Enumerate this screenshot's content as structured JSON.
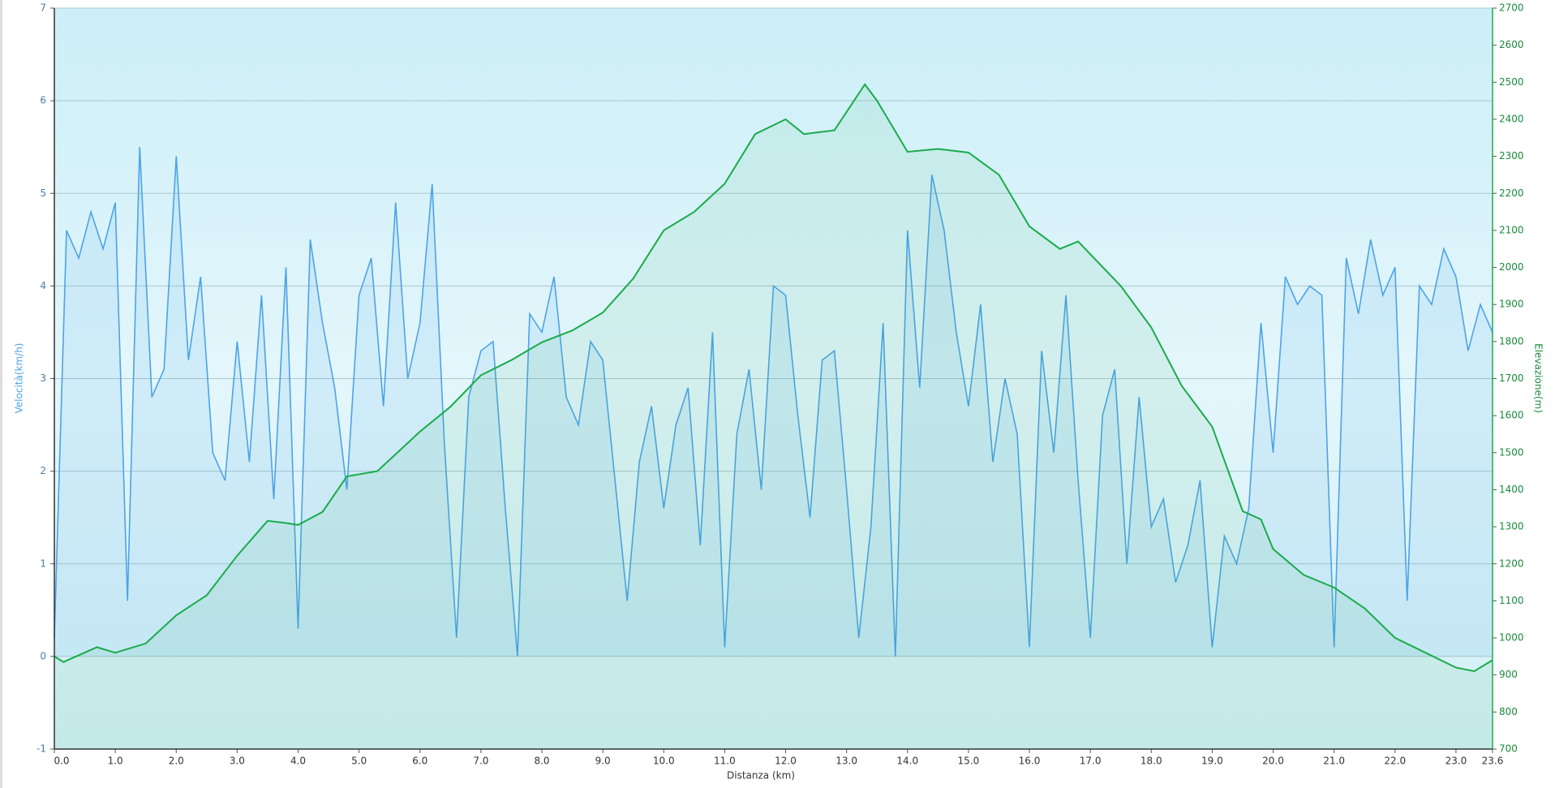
{
  "chart_data": {
    "type": "line",
    "x_label": "Distanza  (km)",
    "y_label": "Velocità(km/h)",
    "y2_label": "Elevazione(m)",
    "xlim": [
      0,
      23.6
    ],
    "xticks": [
      {
        "value": 0,
        "label": "0.0"
      },
      {
        "value": 1,
        "label": "1.0"
      },
      {
        "value": 2,
        "label": "2.0"
      },
      {
        "value": 3,
        "label": "3.0"
      },
      {
        "value": 4,
        "label": "4.0"
      },
      {
        "value": 5,
        "label": "5.0"
      },
      {
        "value": 6,
        "label": "6.0"
      },
      {
        "value": 7,
        "label": "7.0"
      },
      {
        "value": 8,
        "label": "8.0"
      },
      {
        "value": 9,
        "label": "9.0"
      },
      {
        "value": 10,
        "label": "10.0"
      },
      {
        "value": 11,
        "label": "11.0"
      },
      {
        "value": 12,
        "label": "12.0"
      },
      {
        "value": 13,
        "label": "13.0"
      },
      {
        "value": 14,
        "label": "14.0"
      },
      {
        "value": 15,
        "label": "15.0"
      },
      {
        "value": 16,
        "label": "16.0"
      },
      {
        "value": 17,
        "label": "17.0"
      },
      {
        "value": 18,
        "label": "18.0"
      },
      {
        "value": 19,
        "label": "19.0"
      },
      {
        "value": 20,
        "label": "20.0"
      },
      {
        "value": 21,
        "label": "21.0"
      },
      {
        "value": 22,
        "label": "22.0"
      },
      {
        "value": 23,
        "label": "23.0"
      },
      23.6
    ],
    "ylim": [
      -1,
      7
    ],
    "yticks": [
      -1,
      0,
      1,
      2,
      3,
      4,
      5,
      6,
      7
    ],
    "y2lim": [
      700,
      2700
    ],
    "y2ticks": [
      700,
      800,
      900,
      1000,
      1100,
      1200,
      1300,
      1400,
      1500,
      1600,
      1700,
      1800,
      1900,
      2000,
      2100,
      2200,
      2300,
      2400,
      2500,
      2600,
      2700
    ],
    "grid": true,
    "series": [
      {
        "name": "Velocità",
        "color": "#4da3e8",
        "x": [
          0,
          0.2,
          0.4,
          0.6,
          0.8,
          1,
          1.2,
          1.4,
          1.6,
          1.8,
          2,
          2.2,
          2.4,
          2.6,
          2.8,
          3,
          3.2,
          3.4,
          3.6,
          3.8,
          4,
          4.2,
          4.4,
          4.6,
          4.8,
          5,
          5.2,
          5.4,
          5.6,
          5.8,
          6,
          6.2,
          6.4,
          6.6,
          6.8,
          7,
          7.2,
          7.4,
          7.6,
          7.8,
          8,
          8.2,
          8.4,
          8.6,
          8.8,
          9,
          9.2,
          9.4,
          9.6,
          9.8,
          10,
          10.2,
          10.4,
          10.6,
          10.8,
          11,
          11.2,
          11.4,
          11.6,
          11.8,
          12,
          12.2,
          12.4,
          12.6,
          12.8,
          13,
          13.2,
          13.4,
          13.6,
          13.8,
          14,
          14.2,
          14.4,
          14.6,
          14.8,
          15,
          15.2,
          15.4,
          15.6,
          15.8,
          16,
          16.2,
          16.4,
          16.6,
          16.8,
          17,
          17.2,
          17.4,
          17.6,
          17.8,
          18,
          18.2,
          18.4,
          18.6,
          18.8,
          19,
          19.2,
          19.4,
          19.6,
          19.8,
          20,
          20.2,
          20.4,
          20.6,
          20.8,
          21,
          21.2,
          21.4,
          21.6,
          21.8,
          22,
          22.2,
          22.4,
          22.6,
          22.8,
          23,
          23.2,
          23.4,
          23.6
        ],
        "values": [
          0.2,
          4.6,
          4.3,
          4.8,
          4.4,
          4.9,
          0.6,
          5.5,
          2.8,
          3.1,
          5.4,
          3.2,
          4.1,
          2.2,
          1.9,
          3.4,
          2.1,
          3.9,
          1.7,
          4.2,
          0.3,
          4.5,
          3.6,
          2.9,
          1.8,
          3.9,
          4.3,
          2.7,
          4.9,
          3.0,
          3.6,
          5.1,
          2.3,
          0.2,
          2.8,
          3.3,
          3.4,
          1.6,
          0.0,
          3.7,
          3.5,
          4.1,
          2.8,
          2.5,
          3.4,
          3.2,
          1.9,
          0.6,
          2.1,
          2.7,
          1.6,
          2.5,
          2.9,
          1.2,
          3.5,
          0.1,
          2.4,
          3.1,
          1.8,
          4.0,
          3.9,
          2.6,
          1.5,
          3.2,
          3.3,
          1.8,
          0.2,
          1.4,
          3.6,
          0.0,
          4.6,
          2.9,
          5.2,
          4.6,
          3.5,
          2.7,
          3.8,
          2.1,
          3.0,
          2.4,
          0.1,
          3.3,
          2.2,
          3.9,
          1.9,
          0.2,
          2.6,
          3.1,
          1.0,
          2.8,
          1.4,
          1.7,
          0.8,
          1.2,
          1.9,
          0.1,
          1.3,
          1.0,
          1.6,
          3.6,
          2.2,
          4.1,
          3.8,
          4.0,
          3.9,
          0.1,
          4.3,
          3.7,
          4.5,
          3.9,
          4.2,
          0.6,
          4.0,
          3.8,
          4.4,
          4.1,
          3.3,
          3.8,
          3.5
        ]
      },
      {
        "name": "Elevazione",
        "color": "#1aab4a",
        "axis": "y2",
        "x": [
          0,
          0.15,
          0.7,
          1,
          1.5,
          2,
          2.5,
          3,
          3.5,
          3.8,
          4,
          4.4,
          4.8,
          5.3,
          6,
          6.5,
          7,
          7.5,
          8,
          8.5,
          9,
          9.5,
          10,
          10.5,
          11,
          11.5,
          12,
          12.3,
          12.8,
          13.3,
          13.5,
          14,
          14.5,
          15,
          15.5,
          16,
          16.5,
          16.8,
          17.5,
          18,
          18.5,
          19,
          19.5,
          19.8,
          20,
          20.5,
          21,
          21.5,
          22,
          22.5,
          23,
          23.3,
          23.6
        ],
        "values": [
          950,
          935,
          975,
          960,
          985,
          1061,
          1115,
          1222,
          1316,
          1310,
          1305,
          1340,
          1436,
          1450,
          1557,
          1624,
          1709,
          1750,
          1798,
          1830,
          1878,
          1970,
          2100,
          2150,
          2226,
          2360,
          2400,
          2360,
          2370,
          2494,
          2450,
          2312,
          2320,
          2310,
          2250,
          2111,
          2050,
          2070,
          1950,
          1838,
          1680,
          1570,
          1342,
          1320,
          1240,
          1170,
          1136,
          1080,
          1000,
          960,
          920,
          910,
          940
        ]
      }
    ]
  }
}
